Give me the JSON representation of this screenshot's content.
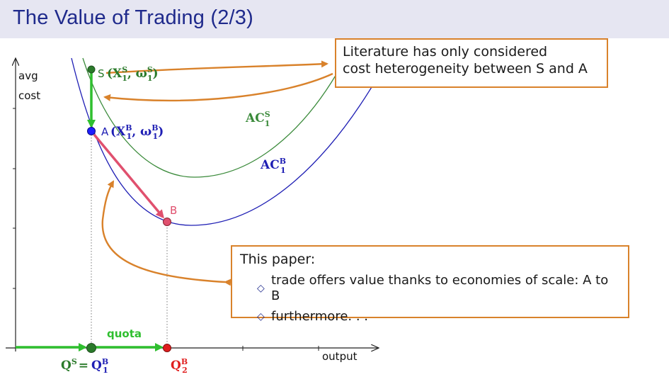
{
  "slide": {
    "title": "The Value of Trading (2/3)"
  },
  "axes": {
    "y_label_line1": "avg",
    "y_label_line2": "cost",
    "x_label": "output"
  },
  "curves": {
    "ac_s": {
      "label_main": "AC",
      "label_sup": "S",
      "label_sub": "1",
      "color": "#3a8a3a"
    },
    "ac_b": {
      "label_main": "AC",
      "label_sup": "B",
      "label_sub": "1",
      "color": "#1e1eb4"
    }
  },
  "points": {
    "s": {
      "letter": "S",
      "expr_open": "(X",
      "expr_x_sup": "S",
      "expr_x_sub": "1",
      "expr_mid": ", ω",
      "expr_w_sup": "S",
      "expr_w_sub": "1",
      "expr_close": ")",
      "color": "#2a7a2a"
    },
    "a": {
      "letter": "A",
      "expr_open": "(X",
      "expr_x_sup": "B",
      "expr_x_sub": "1",
      "expr_mid": ", ω",
      "expr_w_sup": "B",
      "expr_w_sub": "1",
      "expr_close": ")",
      "color": "#1e1eb4"
    },
    "b": {
      "letter": "B",
      "color": "#e0506e"
    }
  },
  "axis_marks": {
    "quota": "quota",
    "qs_main": "Q",
    "qs_sup": "S",
    "equals": "=",
    "qb1_main": "Q",
    "qb1_sup": "B",
    "qb1_sub": "1",
    "qb2_main": "Q",
    "qb2_sup": "B",
    "qb2_sub": "2"
  },
  "literature_box": {
    "line1": "Literature has only considered",
    "line2": "cost heterogeneity between S and A"
  },
  "paper_box": {
    "heading": "This paper:",
    "bullets": [
      "trade offers value thanks to economies of scale: A to B",
      "furthermore. . ."
    ]
  },
  "colors": {
    "arrow_orange": "#d9822b",
    "arrow_green": "#2fbf2f",
    "arrow_pink": "#e0506e",
    "title_blue": "#1f2a8c",
    "title_bg": "#e6e6f2"
  }
}
